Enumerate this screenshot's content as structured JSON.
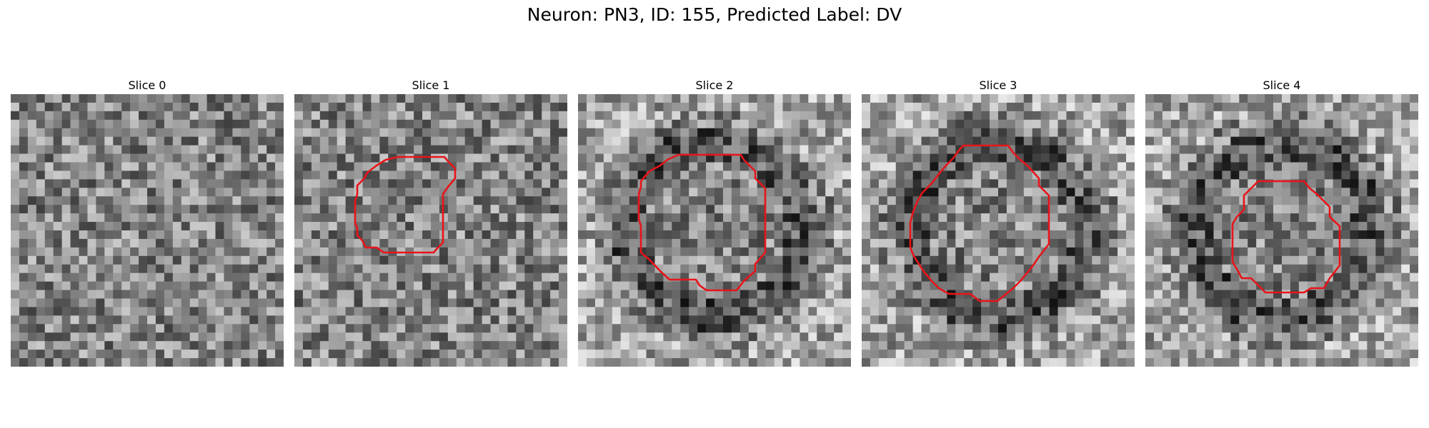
{
  "figure": {
    "title": "Neuron: PN3, ID: 155, Predicted Label: DV"
  },
  "panels": [
    {
      "title": "Slice 0",
      "has_contour": false,
      "dark_ring": false,
      "seed": 11,
      "contour_color": "#e8141a"
    },
    {
      "title": "Slice 1",
      "has_contour": true,
      "dark_ring": false,
      "seed": 23,
      "contour_color": "#e8141a"
    },
    {
      "title": "Slice 2",
      "has_contour": true,
      "dark_ring": true,
      "seed": 37,
      "contour_color": "#e8141a"
    },
    {
      "title": "Slice 3",
      "has_contour": true,
      "dark_ring": true,
      "seed": 41,
      "contour_color": "#e8141a"
    },
    {
      "title": "Slice 4",
      "has_contour": true,
      "dark_ring": true,
      "seed": 53,
      "contour_color": "#e8141a"
    }
  ]
}
